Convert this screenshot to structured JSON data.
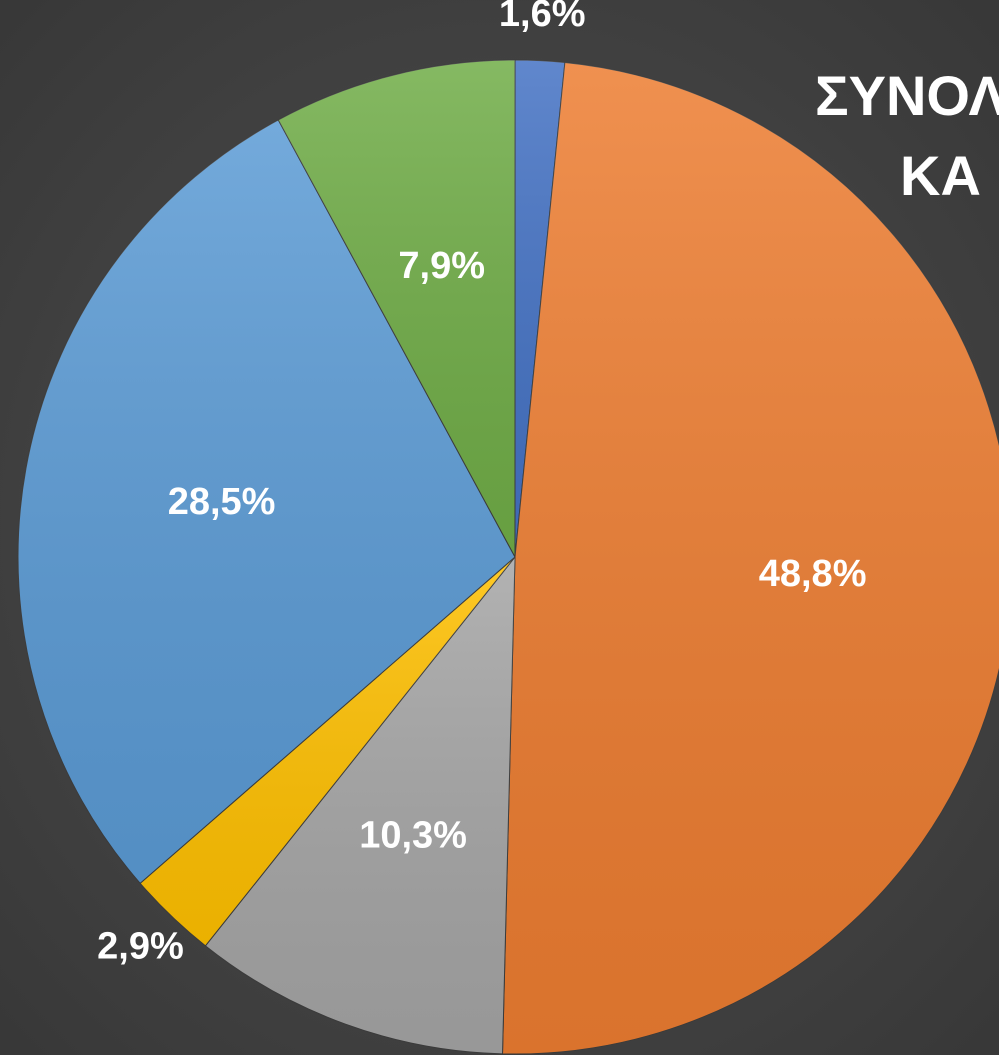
{
  "chart_data": {
    "type": "pie",
    "title_lines": [
      "ΣΥΝΟΛ",
      "ΚΑ"
    ],
    "values": [
      1.6,
      48.8,
      10.3,
      2.9,
      28.5,
      7.9
    ],
    "value_labels": [
      "1,6%",
      "48,8%",
      "10,3%",
      "2,9%",
      "28,5%",
      "7,9%"
    ],
    "colors": [
      "#4472c4",
      "#ed7d31",
      "#a5a5a5",
      "#ffc000",
      "#5b9bd5",
      "#70ad47"
    ]
  }
}
